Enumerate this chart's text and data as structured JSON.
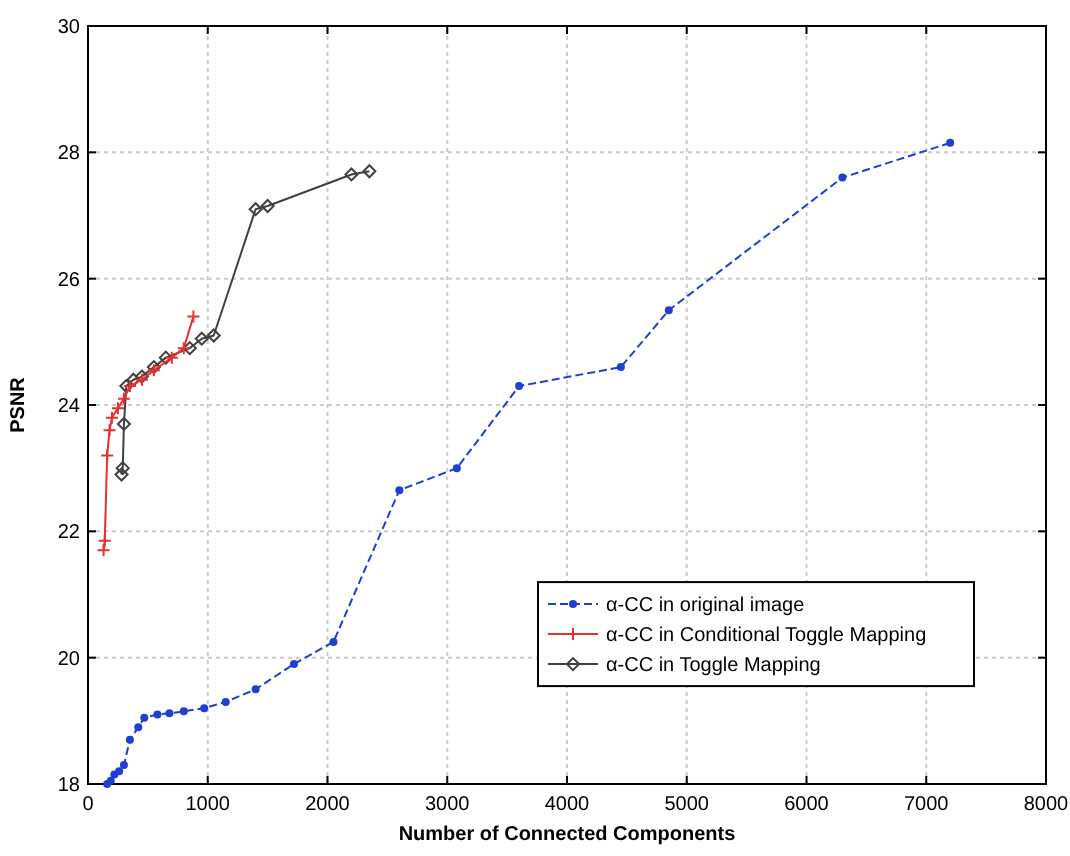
{
  "chart_data": {
    "type": "line",
    "xlabel": "Number of Connected Components",
    "ylabel": "PSNR",
    "xlim": [
      0,
      8000
    ],
    "xticks": [
      0,
      1000,
      2000,
      3000,
      4000,
      5000,
      6000,
      7000,
      8000
    ],
    "ylim": [
      18,
      30
    ],
    "yticks": [
      18,
      20,
      22,
      24,
      26,
      28,
      30
    ],
    "grid": true,
    "legend": "bottom right",
    "series": [
      {
        "name": "α-CC in original image",
        "color": "#1f3fd0",
        "line_style": "dashed",
        "marker": "circle",
        "x": [
          160,
          190,
          220,
          260,
          300,
          350,
          420,
          470,
          580,
          680,
          800,
          970,
          1150,
          1400,
          1720,
          2050,
          2600,
          3080,
          3600,
          4450,
          4850,
          6300,
          7200
        ],
        "values": [
          18.0,
          18.05,
          18.15,
          18.2,
          18.3,
          18.7,
          18.9,
          19.05,
          19.1,
          19.12,
          19.15,
          19.2,
          19.3,
          19.5,
          19.9,
          20.25,
          22.65,
          23.0,
          24.3,
          24.6,
          25.5,
          27.6,
          28.15
        ]
      },
      {
        "name": "α-CC in Conditional Toggle Mapping",
        "color": "#e83030",
        "line_style": "solid",
        "marker": "cross",
        "x": [
          130,
          140,
          160,
          180,
          200,
          250,
          300,
          350,
          450,
          550,
          700,
          800,
          880
        ],
        "values": [
          21.7,
          21.85,
          23.2,
          23.6,
          23.8,
          23.95,
          24.1,
          24.3,
          24.4,
          24.55,
          24.75,
          24.9,
          25.4
        ]
      },
      {
        "name": "α-CC in Toggle Mapping",
        "color": "#404040",
        "line_style": "solid",
        "marker": "diamond",
        "x": [
          280,
          290,
          300,
          320,
          380,
          450,
          550,
          650,
          850,
          950,
          1050,
          1400,
          1500,
          2200,
          2350
        ],
        "values": [
          22.9,
          23.0,
          23.7,
          24.3,
          24.4,
          24.45,
          24.6,
          24.75,
          24.9,
          25.05,
          25.1,
          27.1,
          27.15,
          27.65,
          27.7
        ]
      }
    ]
  }
}
